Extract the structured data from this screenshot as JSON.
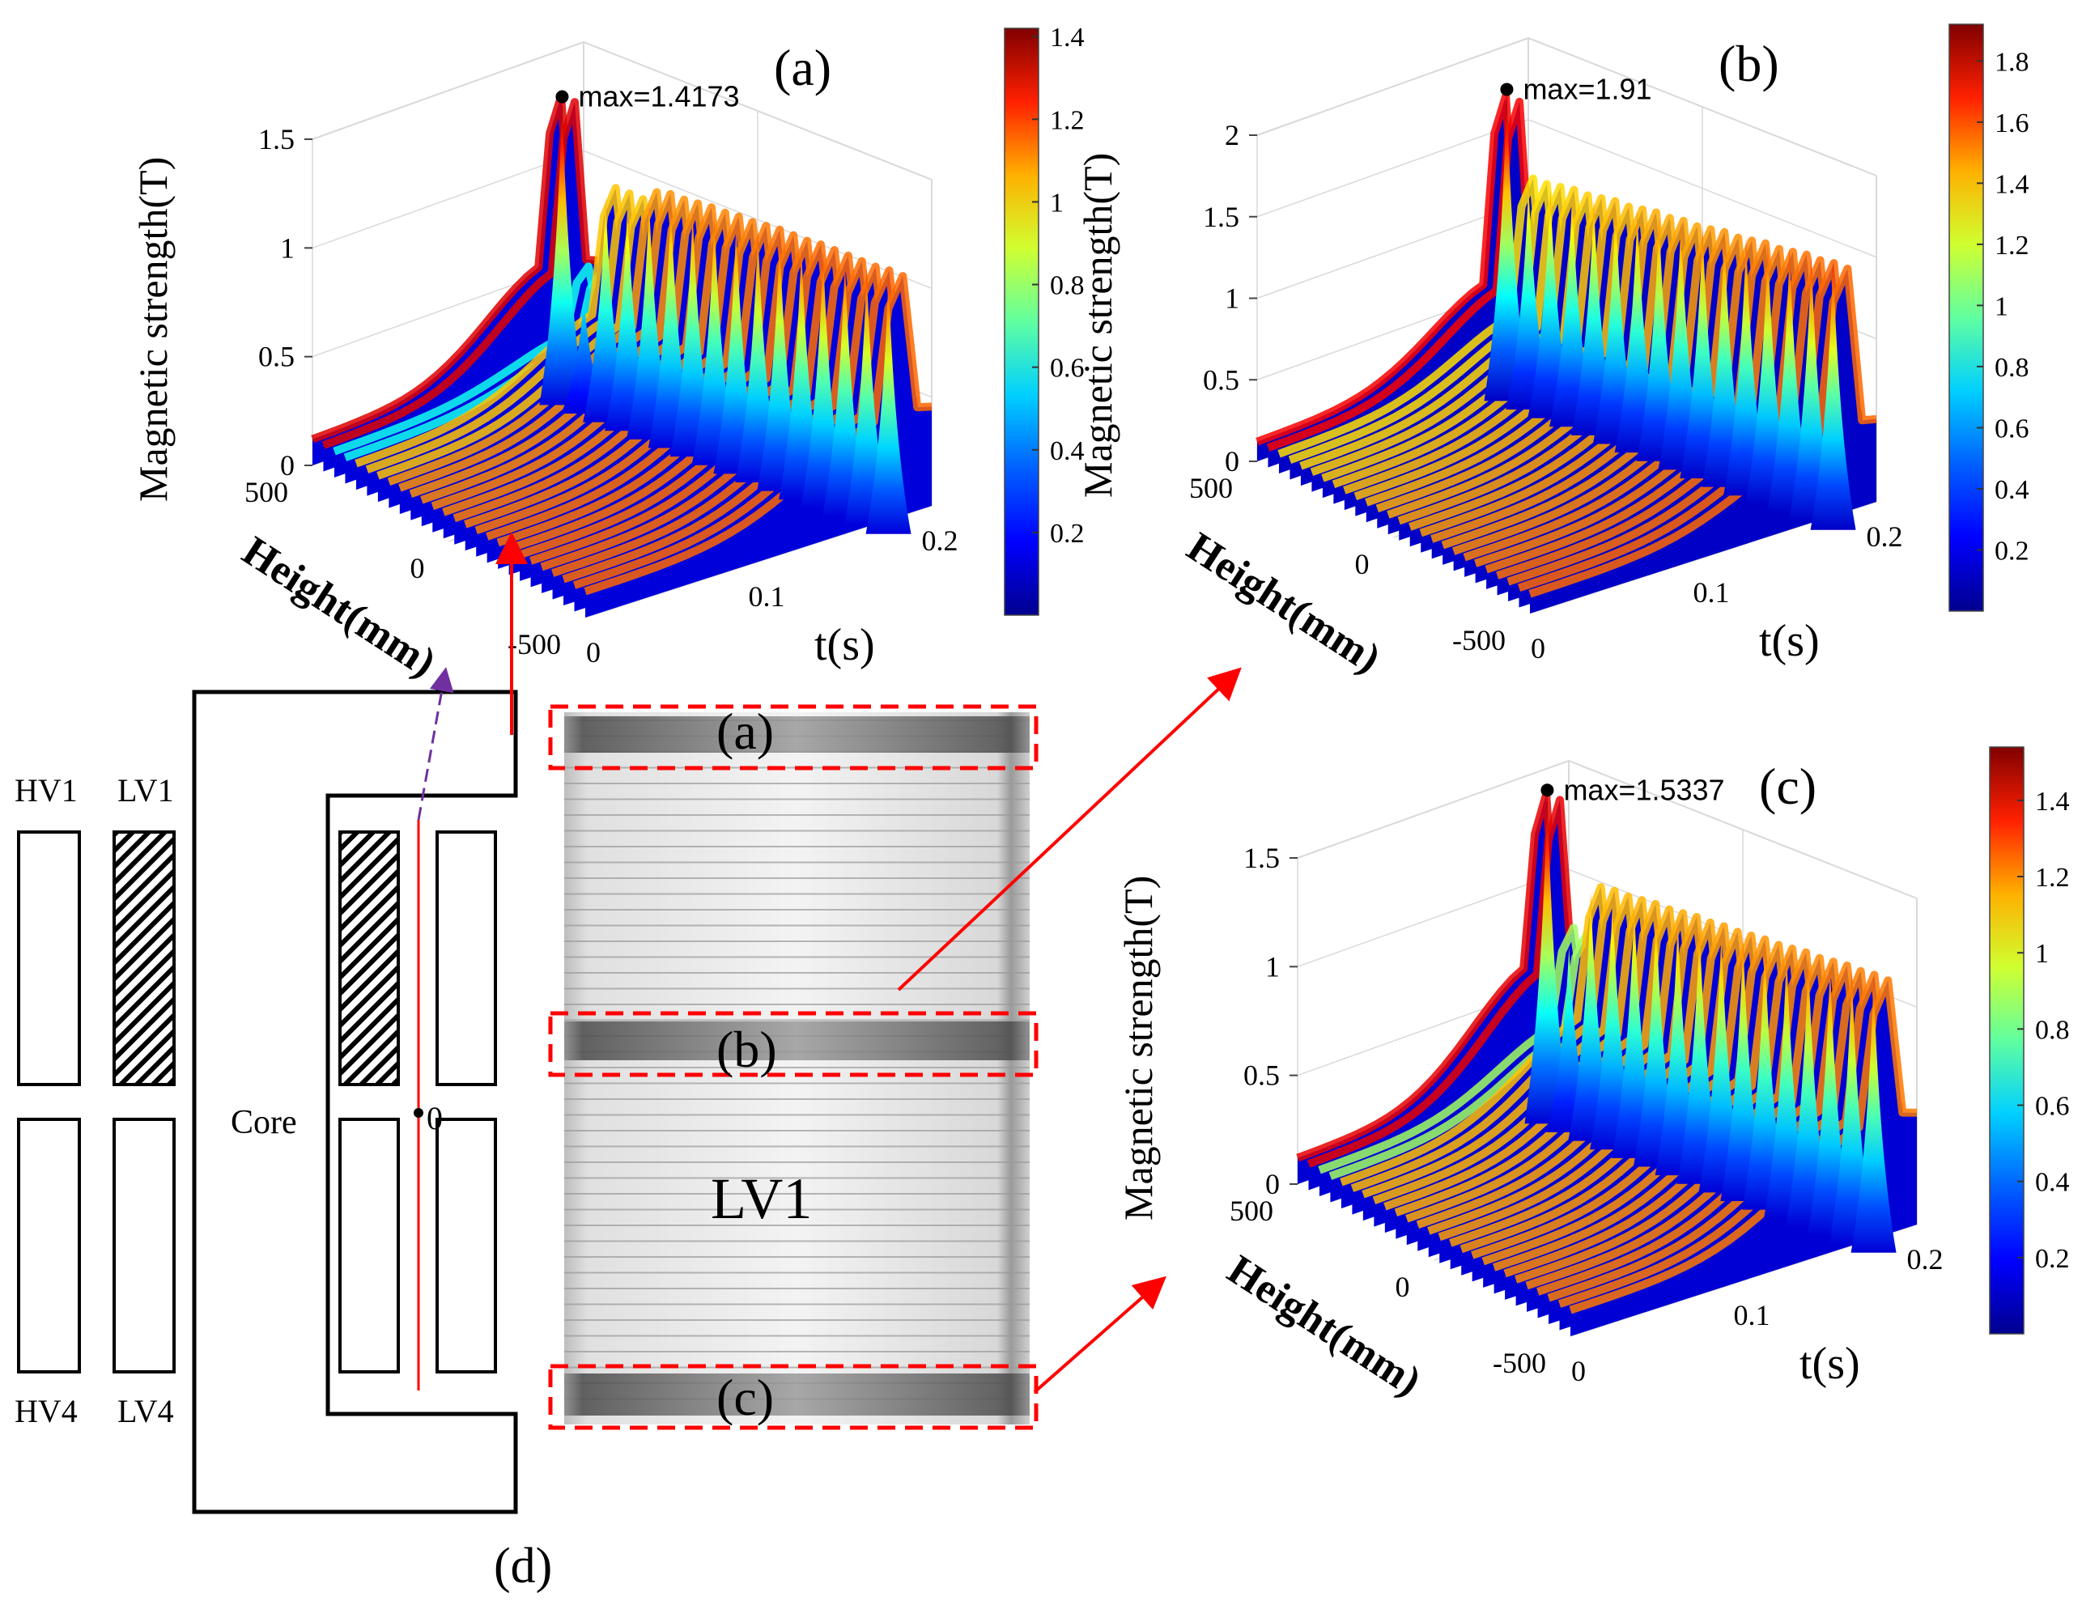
{
  "panel_labels": {
    "a": "(a)",
    "b": "(b)",
    "c": "(c)",
    "d": "(d)"
  },
  "diagram": {
    "coils": {
      "hv1": "HV1",
      "lv1": "LV1",
      "hv4": "HV4",
      "lv4": "LV4"
    },
    "core_label": "Core",
    "origin_label": "0"
  },
  "winding": {
    "label": "LV1",
    "regions": [
      "(a)",
      "(b)",
      "(c)"
    ]
  },
  "colors": {
    "surface_palette": [
      "#00008f",
      "#0000ff",
      "#0080ff",
      "#00ffff",
      "#80ff80",
      "#ffff00",
      "#ff8000",
      "#ff0000",
      "#800000"
    ],
    "arrow_red": "#ff0000",
    "arrow_purple": "#7030a0",
    "region_box": "#ff0000"
  },
  "chart_data": [
    {
      "id": "a",
      "type": "surface3d",
      "title": "(a)",
      "zlabel": "Magnetic  strength(T)",
      "xlabel": "t(s)",
      "ylabel": "Height(mm)",
      "zticks": [
        "0",
        "0.5",
        "1",
        "1.5"
      ],
      "zlim": [
        0,
        1.5
      ],
      "xticks": [
        "0",
        "0.1",
        "0.2"
      ],
      "yticks": [
        "500",
        "0",
        "-500"
      ],
      "peak_count": 16,
      "peaks": [
        1.4173,
        0.53,
        1.03,
        1.03,
        1.1,
        1.12,
        1.13,
        1.14,
        1.15,
        1.16,
        1.17,
        1.17,
        1.18,
        1.18,
        1.18,
        1.19
      ],
      "shoulder": 0.5,
      "base": 0.12,
      "annotation": "max=1.4173",
      "colorbar_ticks": [
        "0.2",
        "0.4",
        "0.6",
        "0.8",
        "1",
        "1.2",
        "1.4"
      ],
      "colorbar_range": [
        0,
        1.42
      ]
    },
    {
      "id": "b",
      "type": "surface3d",
      "title": "(b)",
      "zlabel": "Magnetic  strength(T)",
      "xlabel": "t(s)",
      "ylabel": "Height(mm)",
      "zticks": [
        "0",
        "0.5",
        "1",
        "1.5",
        "2"
      ],
      "zlim": [
        0,
        2
      ],
      "xticks": [
        "0",
        "0.1",
        "0.2"
      ],
      "yticks": [
        "500",
        "0",
        "-500"
      ],
      "peak_count": 16,
      "peaks": [
        1.91,
        1.38,
        1.4,
        1.42,
        1.44,
        1.46,
        1.48,
        1.5,
        1.52,
        1.54,
        1.56,
        1.58,
        1.6,
        1.62,
        1.64,
        1.66
      ],
      "shoulder": 0.55,
      "base": 0.12,
      "annotation": "max=1.91",
      "colorbar_ticks": [
        "0.2",
        "0.4",
        "0.6",
        "0.8",
        "1",
        "1.2",
        "1.4",
        "1.6",
        "1.8"
      ],
      "colorbar_range": [
        0,
        1.92
      ]
    },
    {
      "id": "c",
      "type": "surface3d",
      "title": "(c)",
      "zlabel": "Magnetic  strength(T)",
      "xlabel": "t(s)",
      "ylabel": "Height(mm)",
      "zticks": [
        "0",
        "0.5",
        "1",
        "1.5"
      ],
      "zlim": [
        0,
        1.5
      ],
      "xticks": [
        "0",
        "0.1",
        "0.2"
      ],
      "yticks": [
        "500",
        "0",
        "-500"
      ],
      "peak_count": 16,
      "peaks": [
        1.5337,
        0.85,
        1.14,
        1.15,
        1.16,
        1.17,
        1.18,
        1.19,
        1.2,
        1.21,
        1.22,
        1.23,
        1.24,
        1.25,
        1.26,
        1.27
      ],
      "shoulder": 0.55,
      "base": 0.12,
      "annotation": "max=1.5337",
      "colorbar_ticks": [
        "0.2",
        "0.4",
        "0.6",
        "0.8",
        "1",
        "1.2",
        "1.4"
      ],
      "colorbar_range": [
        0,
        1.54
      ]
    }
  ]
}
